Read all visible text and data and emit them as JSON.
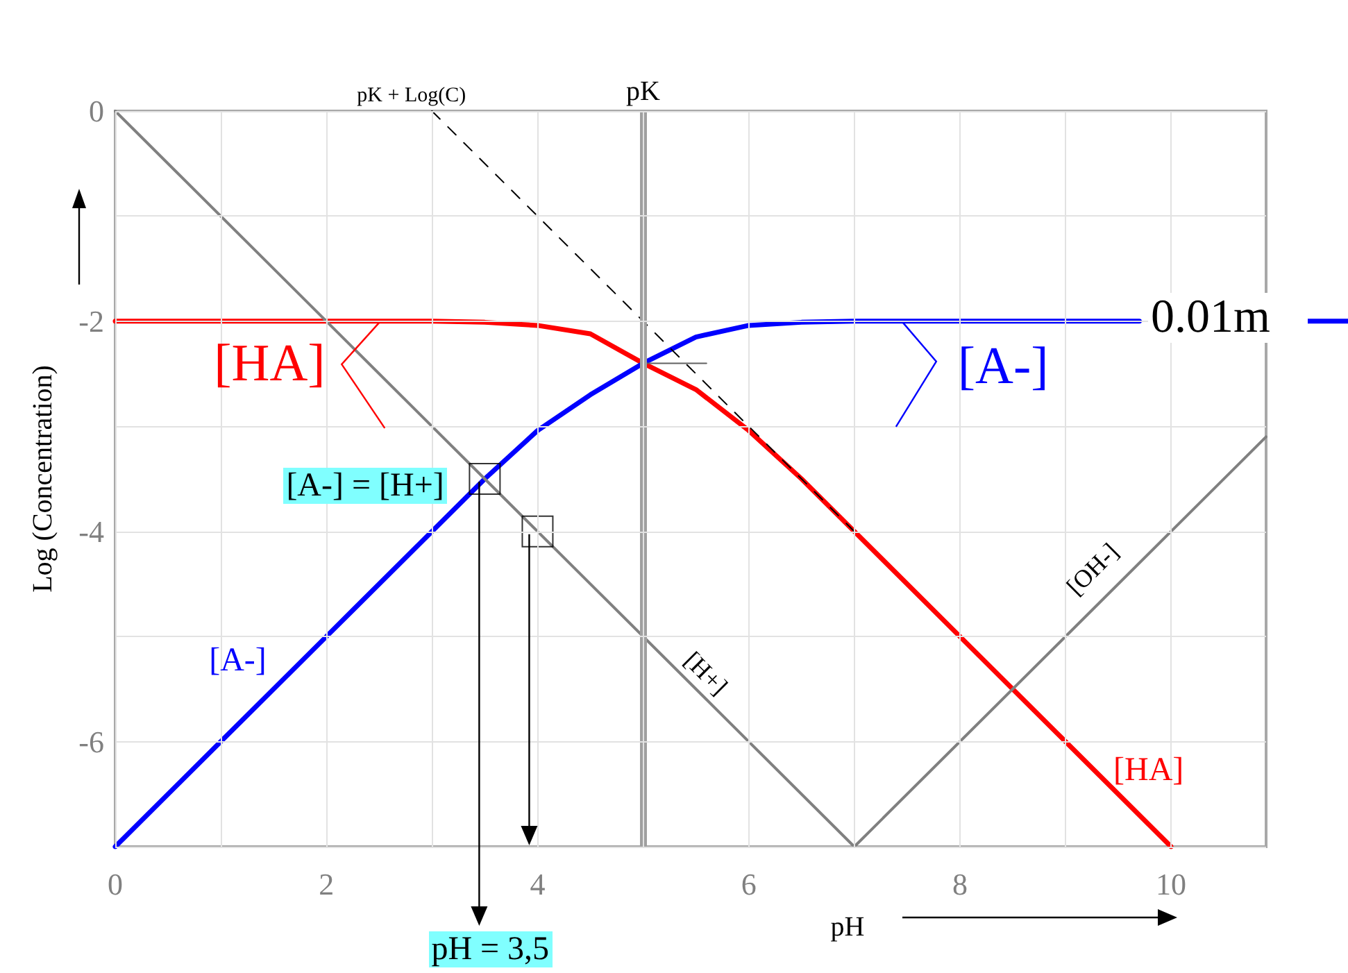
{
  "chart_data": {
    "type": "line",
    "xlabel": "pH",
    "ylabel": "Log (Concentration)",
    "xlim": [
      0,
      10.9
    ],
    "ylim": [
      -7,
      0
    ],
    "xticks": [
      0,
      {
        "value": 1,
        "label": null
      },
      2,
      {
        "value": 3,
        "label": null
      },
      4,
      {
        "value": 5,
        "label": null
      },
      6,
      {
        "value": 7,
        "label": null
      },
      8,
      {
        "value": 9,
        "label": null
      },
      10
    ],
    "yticks": [
      {
        "value": -7,
        "label": null
      },
      -6,
      {
        "value": -5,
        "label": null
      },
      -4,
      {
        "value": -3,
        "label": null
      },
      -2,
      {
        "value": -1,
        "label": null
      },
      0
    ],
    "grid": true,
    "marker": "none",
    "line_style": "solid",
    "series": [
      {
        "color": "#ff0000",
        "x": [
          0,
          1,
          2,
          3,
          3.5,
          4,
          4.5,
          5,
          5.5,
          6,
          6.5,
          7,
          8,
          9,
          10
        ],
        "values": [
          -2,
          -2,
          -2,
          -2,
          -2.01,
          -2.04,
          -2.12,
          -2.4,
          -2.65,
          -3.04,
          -3.5,
          -4,
          -5,
          -6,
          -7
        ]
      },
      {
        "color": "#0000ff",
        "x": [
          0,
          1,
          2,
          3,
          3.5,
          4,
          4.5,
          5,
          5.5,
          6,
          6.5,
          7,
          8,
          9,
          9.7
        ],
        "values": [
          -7,
          -6,
          -5,
          -4,
          -3.5,
          -3.04,
          -2.7,
          -2.4,
          -2.15,
          -2.04,
          -2.01,
          -2,
          -2,
          -2,
          -2
        ]
      },
      {
        "color": "#808080",
        "x": [
          0,
          7
        ],
        "values": [
          0,
          -7
        ]
      },
      {
        "color": "#808080",
        "x": [
          7,
          10.9
        ],
        "values": [
          -7,
          -3.1
        ]
      },
      {
        "color": "#000000",
        "line_style": "dashed",
        "x": [
          3,
          7
        ],
        "values": [
          0,
          -4
        ]
      },
      {
        "color": "#606060",
        "x": [
          5,
          5.6
        ],
        "values": [
          -2.4,
          -2.4
        ]
      },
      {
        "type": "scatter",
        "marker": "square",
        "color": "#000000",
        "x": [
          3.5,
          4
        ],
        "values": [
          -3.5,
          -4
        ]
      }
    ],
    "ref_lines": [
      {
        "axis": "x",
        "value": 5,
        "label": "pK",
        "color": "#a0a0a0"
      }
    ],
    "annotations": [
      {
        "text": "pK + Log(C)",
        "x": 3,
        "y": 0
      },
      {
        "text": "[HA]",
        "x": 2.5,
        "y": -2
      },
      {
        "text": "[A-]",
        "x": 7.5,
        "y": -2
      },
      "0.01m",
      {
        "text": "[A-] = [H+]",
        "x": 3.5,
        "y": -3.5
      },
      {
        "text": "pH = 3,5",
        "x": 3.5,
        "y": -3.5
      },
      {
        "text": "[A-]",
        "x": 2,
        "y": -5
      },
      {
        "text": "[H+]",
        "x": 5.5,
        "y": -5.5
      },
      {
        "text": "[OH-]",
        "x": 9.3,
        "y": -4.7
      },
      {
        "text": "[HA]",
        "x": 9.5,
        "y": -6.5
      }
    ]
  }
}
